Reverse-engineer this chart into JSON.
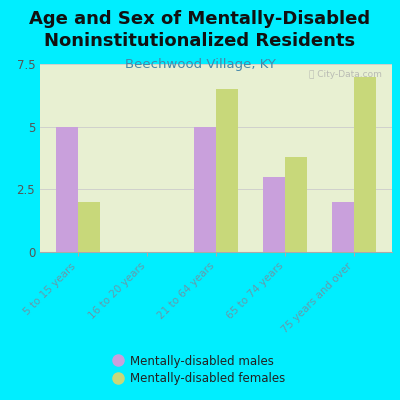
{
  "title": "Age and Sex of Mentally-Disabled\nNoninstitutionalized Residents",
  "subtitle": "Beechwood Village, KY",
  "categories": [
    "5 to 15 years",
    "16 to 20 years",
    "21 to 64 years",
    "65 to 74 years",
    "75 years and over"
  ],
  "males": [
    5,
    0,
    5,
    3,
    2
  ],
  "females": [
    2,
    0,
    6.5,
    3.8,
    7
  ],
  "male_color": "#c9a0dc",
  "female_color": "#c8d87a",
  "background_color": "#00eeff",
  "plot_bg": "#e8f0d0",
  "ylim": [
    0,
    7.5
  ],
  "yticks": [
    0,
    2.5,
    5,
    7.5
  ],
  "bar_width": 0.32,
  "title_fontsize": 13,
  "subtitle_fontsize": 9.5,
  "tick_label_color": "#777777",
  "xtick_color": "#6699aa",
  "legend_label_male": "Mentally-disabled males",
  "legend_label_female": "Mentally-disabled females"
}
